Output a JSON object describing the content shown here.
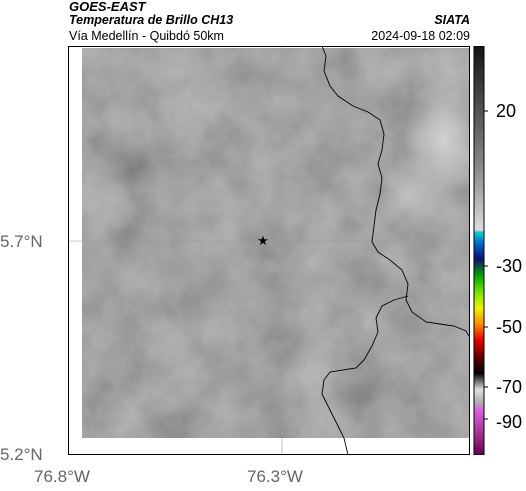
{
  "header": {
    "satellite": "GOES-EAST",
    "product": "Temperatura de Brillo CH13",
    "region": "Vía Medellín - Quibdó 50km",
    "organization": "SIATA",
    "timestamp": "2024-09-18 02:09"
  },
  "axes": {
    "lat_labels": [
      "5.7°N",
      "5.2°N"
    ],
    "lon_labels": [
      "76.8°W",
      "76.3°W"
    ]
  },
  "colorbar": {
    "tick_labels": [
      "20",
      "-30",
      "-50",
      "-70",
      "-90"
    ]
  },
  "map": {
    "marker_icon": "star-icon",
    "border_color": "#000000",
    "gridline_color": "#9a9a9a"
  }
}
